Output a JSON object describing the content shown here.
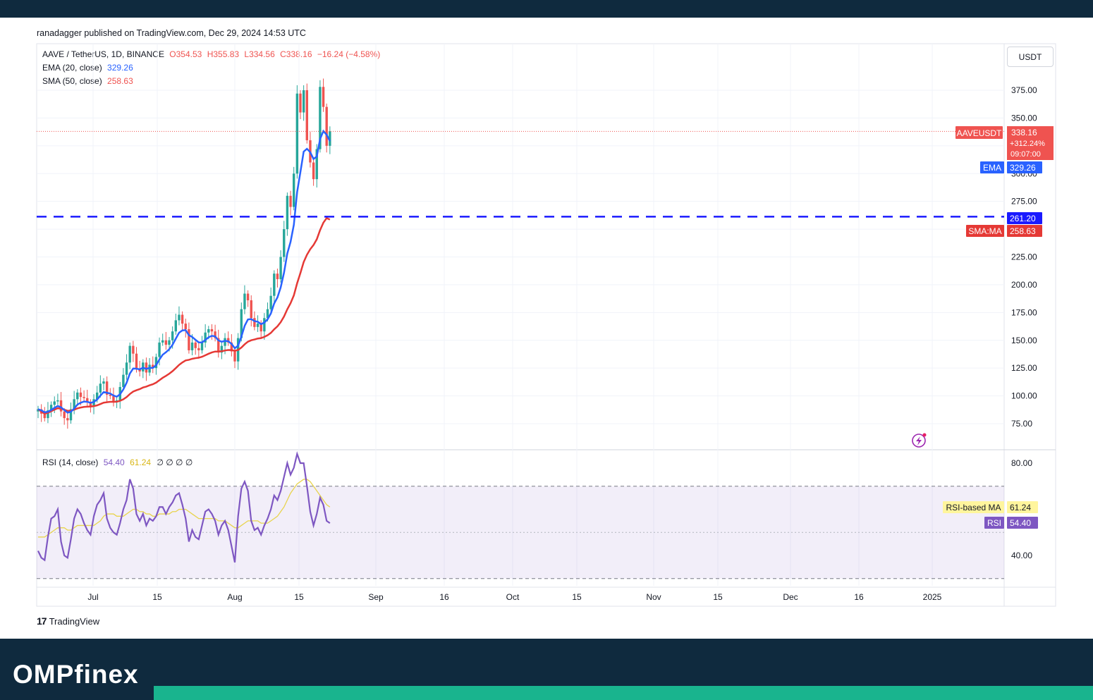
{
  "publisher": "ranadagger published on TradingView.com, Dec 29, 2024 14:53 UTC",
  "symbol": {
    "title": "AAVE / TetherUS, 1D, BINANCE",
    "open": "O354.53",
    "high": "H355.83",
    "low": "L334.56",
    "close": "C338.16",
    "change": "−16.24 (−4.58%)"
  },
  "indicators": {
    "ema_label": "EMA (20, close)",
    "ema_value": "329.26",
    "sma_label": "SMA (50, close)",
    "sma_value": "258.63",
    "rsi_label": "RSI (14, close)",
    "rsi_value": "54.40",
    "rsi_ma_value": "61.24",
    "rsi_extra": "∅ ∅ ∅ ∅"
  },
  "currency_button": "USDT",
  "price_tags": {
    "symbol_tag": "AAVEUSDT",
    "last_price": "338.16",
    "pct": "+312.24%",
    "countdown": "09:07:00",
    "ema_tag": "EMA",
    "ema_value": "329.26",
    "line_value": "261.20",
    "sma_tag": "SMA:MA",
    "sma_value": "258.63",
    "rsi_ma_tag": "RSI-based MA",
    "rsi_ma_value": "61.24",
    "rsi_tag": "RSI",
    "rsi_value": "54.40"
  },
  "footer_logo": "TradingView",
  "brand": "OMPfinex",
  "colors": {
    "up": "#26a69a",
    "down": "#ef5350",
    "ema": "#2962ff",
    "sma": "#e53935",
    "support": "#1a1aff",
    "rsi": "#7e57c2",
    "rsi_ma": "#e8d44d",
    "rsi_band": "rgba(126,87,194,0.10)",
    "header": "#0f2a3e",
    "accent": "#19b48e"
  },
  "chart_data": [
    {
      "type": "candlestick",
      "title": "AAVE / TetherUS, 1D, BINANCE",
      "x_ticks": [
        "Jul",
        "15",
        "Aug",
        "15",
        "Sep",
        "16",
        "Oct",
        "15",
        "Nov",
        "15",
        "Dec",
        "16",
        "2025"
      ],
      "y_ticks": [
        75,
        100,
        125,
        150,
        175,
        200,
        225,
        250,
        275,
        300,
        325,
        350,
        375
      ],
      "ylim": [
        57,
        403
      ],
      "horizontal_line": {
        "value": 261.2,
        "style": "dashed"
      },
      "close_series": [
        {
          "x": 0,
          "close": 88
        },
        {
          "x": 3,
          "close": 84
        },
        {
          "x": 6,
          "close": 80
        },
        {
          "x": 9,
          "close": 87
        },
        {
          "x": 12,
          "close": 92
        },
        {
          "x": 15,
          "close": 95
        },
        {
          "x": 18,
          "close": 96
        },
        {
          "x": 21,
          "close": 86
        },
        {
          "x": 24,
          "close": 80
        },
        {
          "x": 27,
          "close": 78
        },
        {
          "x": 31,
          "close": 88
        },
        {
          "x": 34,
          "close": 97
        },
        {
          "x": 37,
          "close": 103
        },
        {
          "x": 40,
          "close": 99
        },
        {
          "x": 43,
          "close": 98
        },
        {
          "x": 46,
          "close": 94
        },
        {
          "x": 49,
          "close": 91
        },
        {
          "x": 52,
          "close": 97
        },
        {
          "x": 55,
          "close": 103
        },
        {
          "x": 58,
          "close": 111
        },
        {
          "x": 61,
          "close": 113
        },
        {
          "x": 64,
          "close": 101
        },
        {
          "x": 67,
          "close": 100
        },
        {
          "x": 70,
          "close": 95
        },
        {
          "x": 73,
          "close": 96
        },
        {
          "x": 76,
          "close": 108
        },
        {
          "x": 79,
          "close": 119
        },
        {
          "x": 82,
          "close": 130
        },
        {
          "x": 85,
          "close": 145
        },
        {
          "x": 88,
          "close": 138
        },
        {
          "x": 91,
          "close": 124
        },
        {
          "x": 94,
          "close": 122
        },
        {
          "x": 97,
          "close": 130
        },
        {
          "x": 100,
          "close": 121
        },
        {
          "x": 103,
          "close": 128
        },
        {
          "x": 106,
          "close": 125
        },
        {
          "x": 109,
          "close": 135
        },
        {
          "x": 112,
          "close": 148
        },
        {
          "x": 115,
          "close": 150
        },
        {
          "x": 118,
          "close": 146
        },
        {
          "x": 121,
          "close": 150
        },
        {
          "x": 124,
          "close": 158
        },
        {
          "x": 127,
          "close": 168
        },
        {
          "x": 130,
          "close": 173
        },
        {
          "x": 133,
          "close": 165
        },
        {
          "x": 136,
          "close": 160
        },
        {
          "x": 139,
          "close": 141
        },
        {
          "x": 142,
          "close": 148
        },
        {
          "x": 145,
          "close": 143
        },
        {
          "x": 148,
          "close": 141
        },
        {
          "x": 151,
          "close": 148
        },
        {
          "x": 154,
          "close": 157
        },
        {
          "x": 157,
          "close": 160
        },
        {
          "x": 160,
          "close": 158
        },
        {
          "x": 163,
          "close": 152
        },
        {
          "x": 166,
          "close": 139
        },
        {
          "x": 169,
          "close": 145
        },
        {
          "x": 172,
          "close": 152
        },
        {
          "x": 175,
          "close": 148
        },
        {
          "x": 178,
          "close": 140
        },
        {
          "x": 181,
          "close": 131
        },
        {
          "x": 184,
          "close": 152
        },
        {
          "x": 187,
          "close": 178
        },
        {
          "x": 190,
          "close": 192
        },
        {
          "x": 193,
          "close": 186
        },
        {
          "x": 196,
          "close": 170
        },
        {
          "x": 199,
          "close": 162
        },
        {
          "x": 202,
          "close": 165
        },
        {
          "x": 205,
          "close": 158
        },
        {
          "x": 208,
          "close": 170
        },
        {
          "x": 211,
          "close": 178
        },
        {
          "x": 214,
          "close": 190
        },
        {
          "x": 217,
          "close": 210
        },
        {
          "x": 220,
          "close": 205
        },
        {
          "x": 223,
          "close": 225
        },
        {
          "x": 226,
          "close": 250
        },
        {
          "x": 229,
          "close": 280
        },
        {
          "x": 232,
          "close": 270
        },
        {
          "x": 235,
          "close": 300
        },
        {
          "x": 238,
          "close": 372
        },
        {
          "x": 241,
          "close": 355
        },
        {
          "x": 244,
          "close": 375
        },
        {
          "x": 247,
          "close": 330
        },
        {
          "x": 250,
          "close": 310
        },
        {
          "x": 253,
          "close": 295
        },
        {
          "x": 256,
          "close": 322
        },
        {
          "x": 259,
          "close": 378
        },
        {
          "x": 262,
          "close": 360
        },
        {
          "x": 265,
          "close": 325
        },
        {
          "x": 268,
          "close": 338
        }
      ],
      "ema20": {
        "name": "EMA (20, close)",
        "last": 329.26
      },
      "sma50": {
        "name": "SMA (50, close)",
        "last": 258.63
      }
    },
    {
      "type": "line",
      "title": "RSI (14, close)",
      "y_ticks": [
        40,
        80
      ],
      "bands": [
        30,
        70
      ],
      "series": [
        {
          "name": "RSI",
          "values": [
            42,
            39,
            38,
            48,
            56,
            57,
            60,
            46,
            40,
            39,
            47,
            56,
            60,
            58,
            54,
            51,
            49,
            57,
            62,
            64,
            67,
            56,
            52,
            50,
            49,
            54,
            60,
            64,
            73,
            69,
            58,
            55,
            58,
            53,
            56,
            55,
            57,
            61,
            61,
            58,
            61,
            63,
            66,
            67,
            62,
            56,
            46,
            51,
            48,
            47,
            53,
            59,
            60,
            58,
            55,
            49,
            53,
            55,
            51,
            44,
            37,
            57,
            69,
            72,
            68,
            55,
            51,
            52,
            49,
            53,
            56,
            60,
            66,
            64,
            68,
            74,
            80,
            75,
            78,
            84,
            80,
            80,
            70,
            59,
            53,
            58,
            65,
            62,
            55,
            54
          ]
        },
        {
          "name": "RSI-based MA",
          "values": [
            48,
            48,
            48,
            49,
            50,
            51,
            52,
            52,
            52,
            51,
            51,
            52,
            53,
            53,
            53,
            53,
            53,
            53,
            54,
            55,
            57,
            58,
            58,
            58,
            57,
            57,
            57,
            58,
            59,
            60,
            60,
            59,
            59,
            58,
            58,
            57,
            57,
            58,
            58,
            58,
            58,
            59,
            59,
            60,
            60,
            60,
            59,
            58,
            57,
            56,
            56,
            56,
            56,
            56,
            56,
            55,
            55,
            55,
            54,
            53,
            52,
            52,
            53,
            54,
            55,
            55,
            55,
            55,
            54,
            54,
            54,
            55,
            56,
            57,
            59,
            61,
            64,
            67,
            69,
            71,
            72,
            73,
            73,
            72,
            70,
            68,
            66,
            64,
            62,
            61
          ]
        }
      ]
    }
  ]
}
